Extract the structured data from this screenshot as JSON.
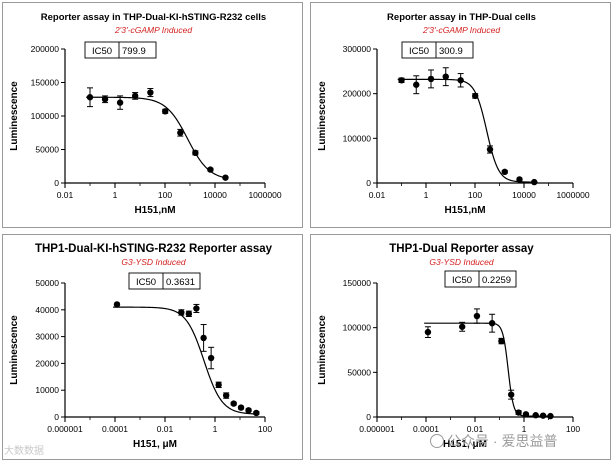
{
  "chart_data": [
    {
      "type": "scatter",
      "title": "Reporter assay in THP-Dual-KI-hSTING-R232 cells",
      "subtitle": "2'3'-cGAMP Induced",
      "xlabel": "H151,nM",
      "ylabel": "Luminescence",
      "xscale": "log",
      "xlim": [
        0.01,
        1000000
      ],
      "ylim": [
        0,
        200000
      ],
      "xticks": [
        "0.01",
        "1",
        "100",
        "10000",
        "1000000"
      ],
      "xtick_values": [
        0.01,
        1,
        100,
        10000,
        1000000
      ],
      "yticks": [
        "0",
        "50000",
        "100000",
        "150000",
        "200000"
      ],
      "ytick_values": [
        0,
        50000,
        100000,
        150000,
        200000
      ],
      "ic50_label": "IC50",
      "ic50_value": "799.9",
      "fit": {
        "top": 128000,
        "bottom": 4000,
        "ic50": 799.9,
        "hill": 1.0
      },
      "series": [
        {
          "name": "data",
          "x": [
            0.1,
            0.4,
            1.6,
            6.4,
            26,
            102,
            410,
            1640,
            6550,
            26200
          ],
          "y": [
            128000,
            125000,
            120000,
            130000,
            135000,
            107000,
            75000,
            45000,
            20000,
            8000
          ],
          "err": [
            14000,
            5000,
            10000,
            5000,
            6000,
            3000,
            5000,
            3000,
            2000,
            1000
          ]
        }
      ],
      "style": {
        "title_size": 9.5,
        "subtitle_size": 8.5,
        "label_size": 10
      }
    },
    {
      "type": "scatter",
      "title": "Reporter assay in THP-Dual cells",
      "subtitle": "2'3'-cGAMP Induced",
      "xlabel": "H151,nM",
      "ylabel": "Luminescence",
      "xscale": "log",
      "xlim": [
        0.01,
        1000000
      ],
      "ylim": [
        0,
        300000
      ],
      "xticks": [
        "0.01",
        "1",
        "100",
        "10000",
        "1000000"
      ],
      "xtick_values": [
        0.01,
        1,
        100,
        10000,
        1000000
      ],
      "yticks": [
        "0",
        "100000",
        "200000",
        "300000"
      ],
      "ytick_values": [
        0,
        100000,
        200000,
        300000
      ],
      "ic50_label": "IC50",
      "ic50_value": "300.9",
      "fit": {
        "top": 232000,
        "bottom": 2000,
        "ic50": 300.9,
        "hill": 1.8
      },
      "series": [
        {
          "name": "data",
          "x": [
            0.1,
            0.4,
            1.6,
            6.4,
            26,
            102,
            410,
            1640,
            6550,
            26200
          ],
          "y": [
            230000,
            220000,
            233000,
            238000,
            230000,
            195000,
            75000,
            25000,
            8000,
            2000
          ],
          "err": [
            5000,
            20000,
            20000,
            20000,
            15000,
            5000,
            8000,
            3000,
            1000,
            500
          ]
        }
      ],
      "style": {
        "title_size": 9.5,
        "subtitle_size": 8.5,
        "label_size": 10
      }
    },
    {
      "type": "scatter",
      "title": "THP1-Dual-KI-hSTING-R232 Reporter assay",
      "subtitle": "G3-YSD Induced",
      "xlabel": "H151, μM",
      "ylabel": "Luminescence",
      "xscale": "log",
      "xlim": [
        1e-06,
        100
      ],
      "ylim": [
        0,
        50000
      ],
      "xticks": [
        "0.000001",
        "0.0001",
        "0.01",
        "1",
        "100"
      ],
      "xtick_values": [
        1e-06,
        0.0001,
        0.01,
        1,
        100
      ],
      "yticks": [
        "0",
        "10000",
        "20000",
        "30000",
        "40000",
        "50000"
      ],
      "ytick_values": [
        0,
        10000,
        20000,
        30000,
        40000,
        50000
      ],
      "ic50_label": "IC50",
      "ic50_value": "0.3631",
      "fit": {
        "top": 41000,
        "bottom": 1000,
        "ic50": 0.3631,
        "hill": 1.2
      },
      "series": [
        {
          "name": "data",
          "x": [
            0.00012,
            0.045,
            0.09,
            0.18,
            0.35,
            0.7,
            1.4,
            2.8,
            5.6,
            11,
            22,
            45
          ],
          "y": [
            42000,
            39000,
            38500,
            40500,
            29500,
            22000,
            12000,
            8000,
            5000,
            3500,
            2500,
            1500
          ],
          "err": [
            0,
            1000,
            1000,
            1500,
            5000,
            4000,
            1000,
            1000,
            500,
            500,
            500,
            500
          ]
        }
      ],
      "style": {
        "title_size": 11.5,
        "subtitle_size": 8.5,
        "label_size": 10
      }
    },
    {
      "type": "scatter",
      "title": "THP1-Dual Reporter assay",
      "subtitle": "G3-YSD Induced",
      "xlabel": "H151, μM",
      "ylabel": "Luminescence",
      "xscale": "log",
      "xlim": [
        1e-06,
        100
      ],
      "ylim": [
        0,
        150000
      ],
      "xticks": [
        "0.000001",
        "0.0001",
        "0.01",
        "1",
        "100"
      ],
      "xtick_values": [
        1e-06,
        0.0001,
        0.01,
        1,
        100
      ],
      "yticks": [
        "0",
        "50000",
        "100000",
        "150000"
      ],
      "ytick_values": [
        0,
        50000,
        100000,
        150000
      ],
      "ic50_label": "IC50",
      "ic50_value": "0.2259",
      "fit": {
        "top": 105000,
        "bottom": 1000,
        "ic50": 0.2259,
        "hill": 4.0
      },
      "series": [
        {
          "name": "data",
          "x": [
            0.00012,
            0.003,
            0.012,
            0.05,
            0.12,
            0.3,
            0.6,
            1.2,
            3,
            6,
            12
          ],
          "y": [
            95000,
            101000,
            113000,
            105000,
            85000,
            25000,
            5000,
            3000,
            2000,
            1500,
            1000
          ],
          "err": [
            6000,
            5000,
            8000,
            10000,
            3000,
            5000,
            2000,
            1000,
            500,
            500,
            500
          ]
        }
      ],
      "style": {
        "title_size": 11.5,
        "subtitle_size": 8.5,
        "label_size": 10
      }
    }
  ],
  "watermark": {
    "left": "大数数据",
    "right": "公众号 · 爱思益普"
  },
  "colors": {
    "title": "#000000",
    "subtitle": "#d42020",
    "axis": "#000000",
    "marker": "#000000",
    "panel_border": "#9a9a9a",
    "watermark": "#9a9a9a"
  }
}
